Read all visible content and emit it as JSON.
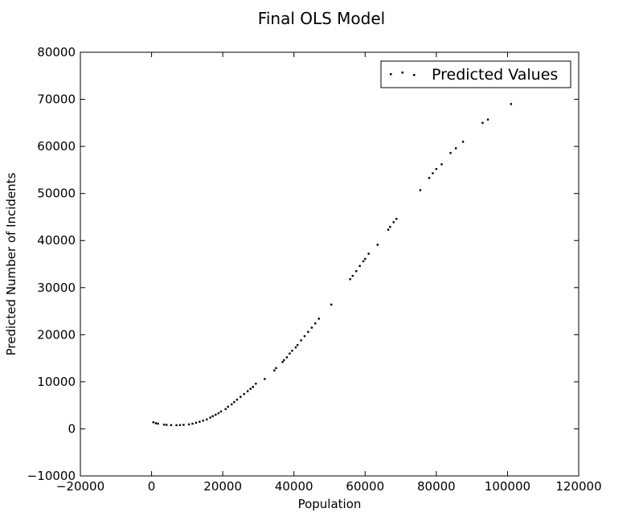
{
  "chart_data": {
    "type": "scatter",
    "title": "Final OLS Model",
    "xlabel": "Population",
    "ylabel": "Predicted Number of Incidents",
    "xlim": [
      -20000,
      120000
    ],
    "ylim": [
      -10000,
      80000
    ],
    "xticks": [
      "−20000",
      "0",
      "20000",
      "40000",
      "60000",
      "80000",
      "100000",
      "120000"
    ],
    "yticks": [
      "−10000",
      "0",
      "10000",
      "20000",
      "30000",
      "40000",
      "50000",
      "60000",
      "70000",
      "80000"
    ],
    "grid": false,
    "legend_position": "top-right",
    "marker_color": "#000000",
    "series": [
      {
        "name": "Predicted Values",
        "x": [
          500,
          1200,
          1800,
          3500,
          4200,
          5500,
          7000,
          8000,
          9000,
          10500,
          11500,
          12500,
          13500,
          14500,
          15500,
          16500,
          17200,
          18000,
          18800,
          19500,
          20800,
          21500,
          22500,
          23200,
          24000,
          25000,
          26000,
          27000,
          27800,
          28500,
          29300,
          31800,
          34500,
          35000,
          36800,
          37200,
          38000,
          38800,
          39500,
          40500,
          41000,
          42000,
          43000,
          44000,
          45000,
          46000,
          47000,
          50500,
          55800,
          56500,
          57500,
          58500,
          59500,
          60000,
          61000,
          63500,
          66500,
          67000,
          68000,
          68800,
          75500,
          78000,
          79000,
          80000,
          81500,
          84000,
          85500,
          87500,
          93000,
          94500,
          101000
        ],
        "y": [
          1400,
          1200,
          1100,
          900,
          850,
          800,
          780,
          800,
          850,
          950,
          1100,
          1300,
          1500,
          1750,
          2000,
          2400,
          2700,
          3000,
          3300,
          3700,
          4200,
          4700,
          5200,
          5700,
          6200,
          6800,
          7400,
          8000,
          8500,
          8900,
          9600,
          10600,
          12400,
          12900,
          14200,
          14600,
          15200,
          16000,
          16600,
          17300,
          17800,
          18800,
          19700,
          20600,
          21500,
          22400,
          23400,
          26400,
          31800,
          32500,
          33500,
          34600,
          35600,
          36100,
          37200,
          39100,
          42300,
          42900,
          43900,
          44600,
          50700,
          53300,
          54300,
          55200,
          56200,
          58600,
          59600,
          61000,
          65000,
          65700,
          69000
        ]
      }
    ]
  }
}
